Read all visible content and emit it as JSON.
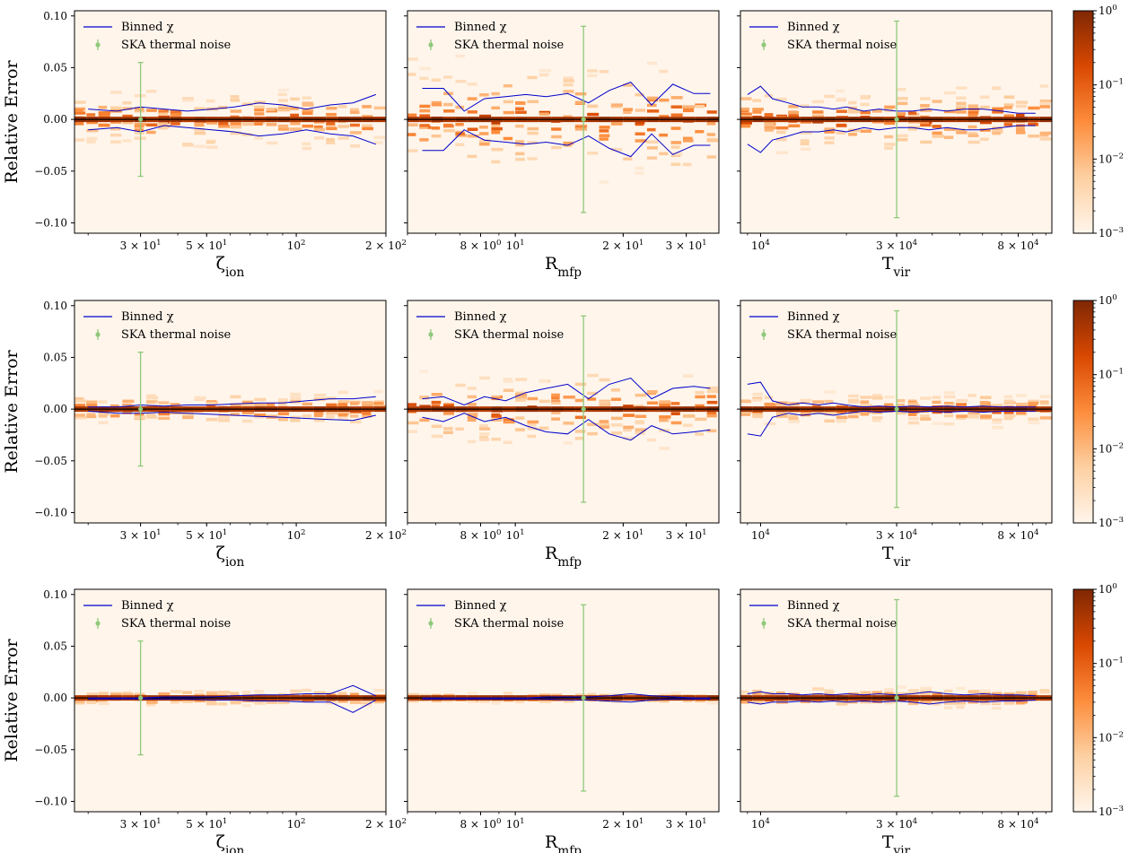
{
  "figure": {
    "ylabel": "Relative Error",
    "legend": {
      "line_label": "Binned χ",
      "errorbar_label": "SKA thermal noise"
    },
    "colors": {
      "panel_bg": "#fff5eb",
      "binned_line": "#0000cc",
      "noise_errorbar": "#8fc97a",
      "colormap": [
        "#fff5eb",
        "#fdd0a2",
        "#fd8d3c",
        "#d94801",
        "#7f2704"
      ]
    },
    "colorbar": {
      "scale": "log",
      "tick_labels": [
        "10^-3",
        "10^-2",
        "10^-1",
        "10^0"
      ]
    }
  },
  "chart_data": [
    {
      "row": 1,
      "col": 1,
      "type": "heatmap",
      "param": "zeta_ion",
      "xlabel": "ζ_ion",
      "xscale": "log",
      "xlim": [
        18,
        200
      ],
      "ylim": [
        -0.11,
        0.105
      ],
      "xticks": [
        {
          "v": 30,
          "label": "3 × 10^1"
        },
        {
          "v": 50,
          "label": "5 × 10^1"
        },
        {
          "v": 100,
          "label": "10^2"
        },
        {
          "v": 200,
          "label": "2 × 10^2"
        }
      ],
      "yticks": [
        {
          "v": 0.1,
          "label": "0.10"
        },
        {
          "v": 0.05,
          "label": "0.05"
        },
        {
          "v": 0.0,
          "label": "0.00"
        },
        {
          "v": -0.05,
          "label": "−0.05"
        },
        {
          "v": -0.1,
          "label": "−0.10"
        }
      ],
      "noise": {
        "x": 30,
        "y": 0,
        "err": 0.055
      },
      "binned_x": [
        20,
        25,
        30,
        36,
        43,
        52,
        62,
        75,
        90,
        108,
        130,
        155,
        185
      ],
      "binned_upper": [
        0.01,
        0.008,
        0.012,
        0.01,
        0.008,
        0.01,
        0.012,
        0.016,
        0.014,
        0.01,
        0.014,
        0.016,
        0.024
      ],
      "binned_lower": [
        -0.01,
        -0.008,
        -0.012,
        -0.006,
        -0.008,
        -0.01,
        -0.012,
        -0.016,
        -0.014,
        -0.01,
        -0.014,
        -0.016,
        -0.024
      ],
      "spread": 0.035
    },
    {
      "row": 1,
      "col": 2,
      "type": "heatmap",
      "param": "R_mfp",
      "xlabel": "R_mfp",
      "xscale": "log",
      "xlim": [
        5,
        37
      ],
      "ylim": [
        -0.11,
        0.105
      ],
      "xticks": [
        {
          "v": 8,
          "label": "8 × 10^0"
        },
        {
          "v": 10,
          "label": "10^1"
        },
        {
          "v": 20,
          "label": "2 × 10^1"
        },
        {
          "v": 30,
          "label": "3 × 10^1"
        }
      ],
      "yticks": [
        {
          "v": 0.1,
          "label": ""
        },
        {
          "v": 0.05,
          "label": ""
        },
        {
          "v": 0.0,
          "label": ""
        },
        {
          "v": -0.05,
          "label": ""
        },
        {
          "v": -0.1,
          "label": ""
        }
      ],
      "noise": {
        "x": 15.5,
        "y": 0,
        "err": 0.09
      },
      "binned_x": [
        5.5,
        6.3,
        7.2,
        8.2,
        9.4,
        10.7,
        12.2,
        14,
        16,
        18.3,
        21,
        24,
        27.5,
        31.5,
        35
      ],
      "binned_upper": [
        0.03,
        0.03,
        0.008,
        0.02,
        0.022,
        0.024,
        0.022,
        0.025,
        0.016,
        0.028,
        0.036,
        0.014,
        0.034,
        0.025,
        0.025
      ],
      "binned_lower": [
        -0.03,
        -0.03,
        -0.01,
        -0.02,
        -0.022,
        -0.024,
        -0.022,
        -0.025,
        -0.016,
        -0.028,
        -0.036,
        -0.014,
        -0.034,
        -0.025,
        -0.025
      ],
      "spread": 0.07
    },
    {
      "row": 1,
      "col": 3,
      "type": "heatmap",
      "param": "T_vir",
      "xlabel": "T_vir",
      "xscale": "log",
      "xlim": [
        8500,
        105000
      ],
      "ylim": [
        -0.11,
        0.105
      ],
      "xticks": [
        {
          "v": 10000,
          "label": "10^4"
        },
        {
          "v": 30000,
          "label": "3 × 10^4"
        },
        {
          "v": 80000,
          "label": "8 × 10^4"
        }
      ],
      "yticks": [
        {
          "v": 0.1,
          "label": ""
        },
        {
          "v": 0.05,
          "label": ""
        },
        {
          "v": 0.0,
          "label": ""
        },
        {
          "v": -0.05,
          "label": ""
        },
        {
          "v": -0.1,
          "label": ""
        }
      ],
      "noise": {
        "x": 30000,
        "y": 0,
        "err": 0.095
      },
      "binned_x": [
        9000,
        10000,
        11000,
        12500,
        14000,
        16000,
        18000,
        20000,
        23000,
        26000,
        30000,
        34000,
        39000,
        45000,
        52000,
        60000,
        70000,
        80000,
        92000
      ],
      "binned_upper": [
        0.024,
        0.032,
        0.02,
        0.016,
        0.012,
        0.012,
        0.01,
        0.012,
        0.008,
        0.01,
        0.008,
        0.008,
        0.01,
        0.008,
        0.01,
        0.01,
        0.008,
        0.006,
        0.006
      ],
      "binned_lower": [
        -0.024,
        -0.032,
        -0.02,
        -0.016,
        -0.012,
        -0.012,
        -0.01,
        -0.012,
        -0.008,
        -0.01,
        -0.008,
        -0.008,
        -0.01,
        -0.008,
        -0.01,
        -0.01,
        -0.008,
        -0.006,
        -0.006
      ],
      "spread": 0.04
    },
    {
      "row": 2,
      "col": 1,
      "type": "heatmap",
      "param": "zeta_ion",
      "xlabel": "ζ_ion",
      "xscale": "log",
      "xlim": [
        18,
        200
      ],
      "ylim": [
        -0.11,
        0.105
      ],
      "xticks": [
        {
          "v": 30,
          "label": "3 × 10^1"
        },
        {
          "v": 50,
          "label": "5 × 10^1"
        },
        {
          "v": 100,
          "label": "10^2"
        },
        {
          "v": 200,
          "label": "2 × 10^2"
        }
      ],
      "yticks": [
        {
          "v": 0.1,
          "label": "0.10"
        },
        {
          "v": 0.05,
          "label": "0.05"
        },
        {
          "v": 0.0,
          "label": "0.00"
        },
        {
          "v": -0.05,
          "label": "−0.05"
        },
        {
          "v": -0.1,
          "label": "−0.10"
        }
      ],
      "noise": {
        "x": 30,
        "y": 0,
        "err": 0.055
      },
      "binned_x": [
        20,
        25,
        30,
        36,
        43,
        52,
        62,
        75,
        90,
        108,
        130,
        155,
        185
      ],
      "binned_upper": [
        0.002,
        0.002,
        0.004,
        0.003,
        0.004,
        0.004,
        0.005,
        0.006,
        0.006,
        0.008,
        0.01,
        0.01,
        0.012
      ],
      "binned_lower": [
        -0.002,
        -0.004,
        -0.004,
        -0.003,
        -0.004,
        -0.005,
        -0.006,
        -0.007,
        -0.008,
        -0.009,
        -0.01,
        -0.011,
        -0.006
      ],
      "spread": 0.02
    },
    {
      "row": 2,
      "col": 2,
      "type": "heatmap",
      "param": "R_mfp",
      "xlabel": "R_mfp",
      "xscale": "log",
      "xlim": [
        5,
        37
      ],
      "ylim": [
        -0.11,
        0.105
      ],
      "xticks": [
        {
          "v": 8,
          "label": "8 × 10^0"
        },
        {
          "v": 10,
          "label": "10^1"
        },
        {
          "v": 20,
          "label": "2 × 10^1"
        },
        {
          "v": 30,
          "label": "3 × 10^1"
        }
      ],
      "yticks": [
        {
          "v": 0.1,
          "label": ""
        },
        {
          "v": 0.05,
          "label": ""
        },
        {
          "v": 0.0,
          "label": ""
        },
        {
          "v": -0.05,
          "label": ""
        },
        {
          "v": -0.1,
          "label": ""
        }
      ],
      "noise": {
        "x": 15.5,
        "y": 0,
        "err": 0.09
      },
      "binned_x": [
        5.5,
        6.3,
        7.2,
        8.2,
        9.4,
        10.7,
        12.2,
        14,
        16,
        18.3,
        21,
        24,
        27.5,
        31.5,
        35
      ],
      "binned_upper": [
        0.01,
        0.012,
        0.004,
        0.012,
        0.008,
        0.016,
        0.02,
        0.024,
        0.01,
        0.024,
        0.03,
        0.01,
        0.02,
        0.022,
        0.02
      ],
      "binned_lower": [
        -0.008,
        -0.012,
        -0.004,
        -0.012,
        -0.008,
        -0.016,
        -0.022,
        -0.024,
        -0.01,
        -0.024,
        -0.03,
        -0.016,
        -0.024,
        -0.022,
        -0.02
      ],
      "spread": 0.045
    },
    {
      "row": 2,
      "col": 3,
      "type": "heatmap",
      "param": "T_vir",
      "xlabel": "T_vir",
      "xscale": "log",
      "xlim": [
        8500,
        105000
      ],
      "ylim": [
        -0.11,
        0.105
      ],
      "xticks": [
        {
          "v": 10000,
          "label": "10^4"
        },
        {
          "v": 30000,
          "label": "3 × 10^4"
        },
        {
          "v": 80000,
          "label": "8 × 10^4"
        }
      ],
      "yticks": [
        {
          "v": 0.1,
          "label": ""
        },
        {
          "v": 0.05,
          "label": ""
        },
        {
          "v": 0.0,
          "label": ""
        },
        {
          "v": -0.05,
          "label": ""
        },
        {
          "v": -0.1,
          "label": ""
        }
      ],
      "noise": {
        "x": 30000,
        "y": 0,
        "err": 0.095
      },
      "binned_x": [
        9000,
        10000,
        11000,
        12500,
        14000,
        16000,
        18000,
        20000,
        23000,
        26000,
        30000,
        34000,
        39000,
        45000,
        52000,
        60000,
        70000,
        80000,
        92000
      ],
      "binned_upper": [
        0.024,
        0.026,
        0.008,
        0.004,
        0.006,
        0.004,
        0.006,
        0.004,
        0.002,
        0.003,
        0.002,
        0.003,
        0.002,
        0.003,
        0.002,
        0.003,
        0.002,
        0.002,
        0.002
      ],
      "binned_lower": [
        -0.024,
        -0.026,
        -0.008,
        -0.004,
        -0.006,
        -0.004,
        -0.006,
        -0.004,
        -0.002,
        -0.003,
        -0.002,
        -0.003,
        -0.002,
        -0.003,
        -0.002,
        -0.003,
        -0.002,
        -0.002,
        -0.002
      ],
      "spread": 0.02
    },
    {
      "row": 3,
      "col": 1,
      "type": "heatmap",
      "param": "zeta_ion",
      "xlabel": "ζ_ion",
      "xscale": "log",
      "xlim": [
        18,
        200
      ],
      "ylim": [
        -0.11,
        0.105
      ],
      "xticks": [
        {
          "v": 30,
          "label": "3 × 10^1"
        },
        {
          "v": 50,
          "label": "5 × 10^1"
        },
        {
          "v": 100,
          "label": "10^2"
        },
        {
          "v": 200,
          "label": "2 × 10^2"
        }
      ],
      "yticks": [
        {
          "v": 0.1,
          "label": "0.10"
        },
        {
          "v": 0.05,
          "label": "0.05"
        },
        {
          "v": 0.0,
          "label": "0.00"
        },
        {
          "v": -0.05,
          "label": "−0.05"
        },
        {
          "v": -0.1,
          "label": "−0.10"
        }
      ],
      "noise": {
        "x": 30,
        "y": 0,
        "err": 0.055
      },
      "binned_x": [
        20,
        25,
        30,
        36,
        43,
        52,
        62,
        75,
        90,
        108,
        130,
        155,
        185
      ],
      "binned_upper": [
        0.0,
        0.0,
        0.0,
        0.001,
        0.001,
        0.001,
        0.002,
        0.003,
        0.003,
        0.004,
        0.004,
        0.012,
        0.002
      ],
      "binned_lower": [
        -0.001,
        -0.001,
        -0.001,
        -0.001,
        -0.001,
        -0.002,
        -0.002,
        -0.003,
        -0.003,
        -0.004,
        -0.004,
        -0.014,
        -0.002
      ],
      "spread": 0.01
    },
    {
      "row": 3,
      "col": 2,
      "type": "heatmap",
      "param": "R_mfp",
      "xlabel": "R_mfp",
      "xscale": "log",
      "xlim": [
        5,
        37
      ],
      "ylim": [
        -0.11,
        0.105
      ],
      "xticks": [
        {
          "v": 8,
          "label": "8 × 10^0"
        },
        {
          "v": 10,
          "label": "10^1"
        },
        {
          "v": 20,
          "label": "2 × 10^1"
        },
        {
          "v": 30,
          "label": "3 × 10^1"
        }
      ],
      "yticks": [
        {
          "v": 0.1,
          "label": ""
        },
        {
          "v": 0.05,
          "label": ""
        },
        {
          "v": 0.0,
          "label": ""
        },
        {
          "v": -0.05,
          "label": ""
        },
        {
          "v": -0.1,
          "label": ""
        }
      ],
      "noise": {
        "x": 15.5,
        "y": 0,
        "err": 0.09
      },
      "binned_x": [
        5.5,
        6.3,
        7.2,
        8.2,
        9.4,
        10.7,
        12.2,
        14,
        16,
        18.3,
        21,
        24,
        27.5,
        31.5,
        35
      ],
      "binned_upper": [
        0.0,
        0.0,
        0.0,
        0.0,
        0.0,
        0.0,
        0.001,
        0.001,
        0.001,
        0.002,
        0.004,
        0.002,
        0.001,
        0.0,
        0.0
      ],
      "binned_lower": [
        -0.001,
        -0.001,
        -0.001,
        -0.001,
        -0.001,
        -0.001,
        -0.001,
        -0.002,
        -0.002,
        -0.003,
        -0.004,
        -0.002,
        -0.001,
        -0.001,
        -0.001
      ],
      "spread": 0.006
    },
    {
      "row": 3,
      "col": 3,
      "type": "heatmap",
      "param": "T_vir",
      "xlabel": "T_vir",
      "xscale": "log",
      "xlim": [
        8500,
        105000
      ],
      "ylim": [
        -0.11,
        0.105
      ],
      "xticks": [
        {
          "v": 10000,
          "label": "10^4"
        },
        {
          "v": 30000,
          "label": "3 × 10^4"
        },
        {
          "v": 80000,
          "label": "8 × 10^4"
        }
      ],
      "yticks": [
        {
          "v": 0.1,
          "label": ""
        },
        {
          "v": 0.05,
          "label": ""
        },
        {
          "v": 0.0,
          "label": ""
        },
        {
          "v": -0.05,
          "label": ""
        },
        {
          "v": -0.1,
          "label": ""
        }
      ],
      "noise": {
        "x": 30000,
        "y": 0,
        "err": 0.095
      },
      "binned_x": [
        9000,
        10000,
        11000,
        12500,
        14000,
        16000,
        18000,
        20000,
        23000,
        26000,
        30000,
        34000,
        39000,
        45000,
        52000,
        60000,
        70000,
        80000,
        92000
      ],
      "binned_upper": [
        0.004,
        0.006,
        0.004,
        0.004,
        0.003,
        0.004,
        0.003,
        0.004,
        0.003,
        0.004,
        0.003,
        0.004,
        0.006,
        0.004,
        0.003,
        0.004,
        0.003,
        0.003,
        0.002
      ],
      "binned_lower": [
        -0.004,
        -0.006,
        -0.004,
        -0.004,
        -0.003,
        -0.004,
        -0.003,
        -0.004,
        -0.003,
        -0.004,
        -0.003,
        -0.004,
        -0.006,
        -0.004,
        -0.003,
        -0.004,
        -0.003,
        -0.003,
        -0.002
      ],
      "spread": 0.012
    }
  ]
}
